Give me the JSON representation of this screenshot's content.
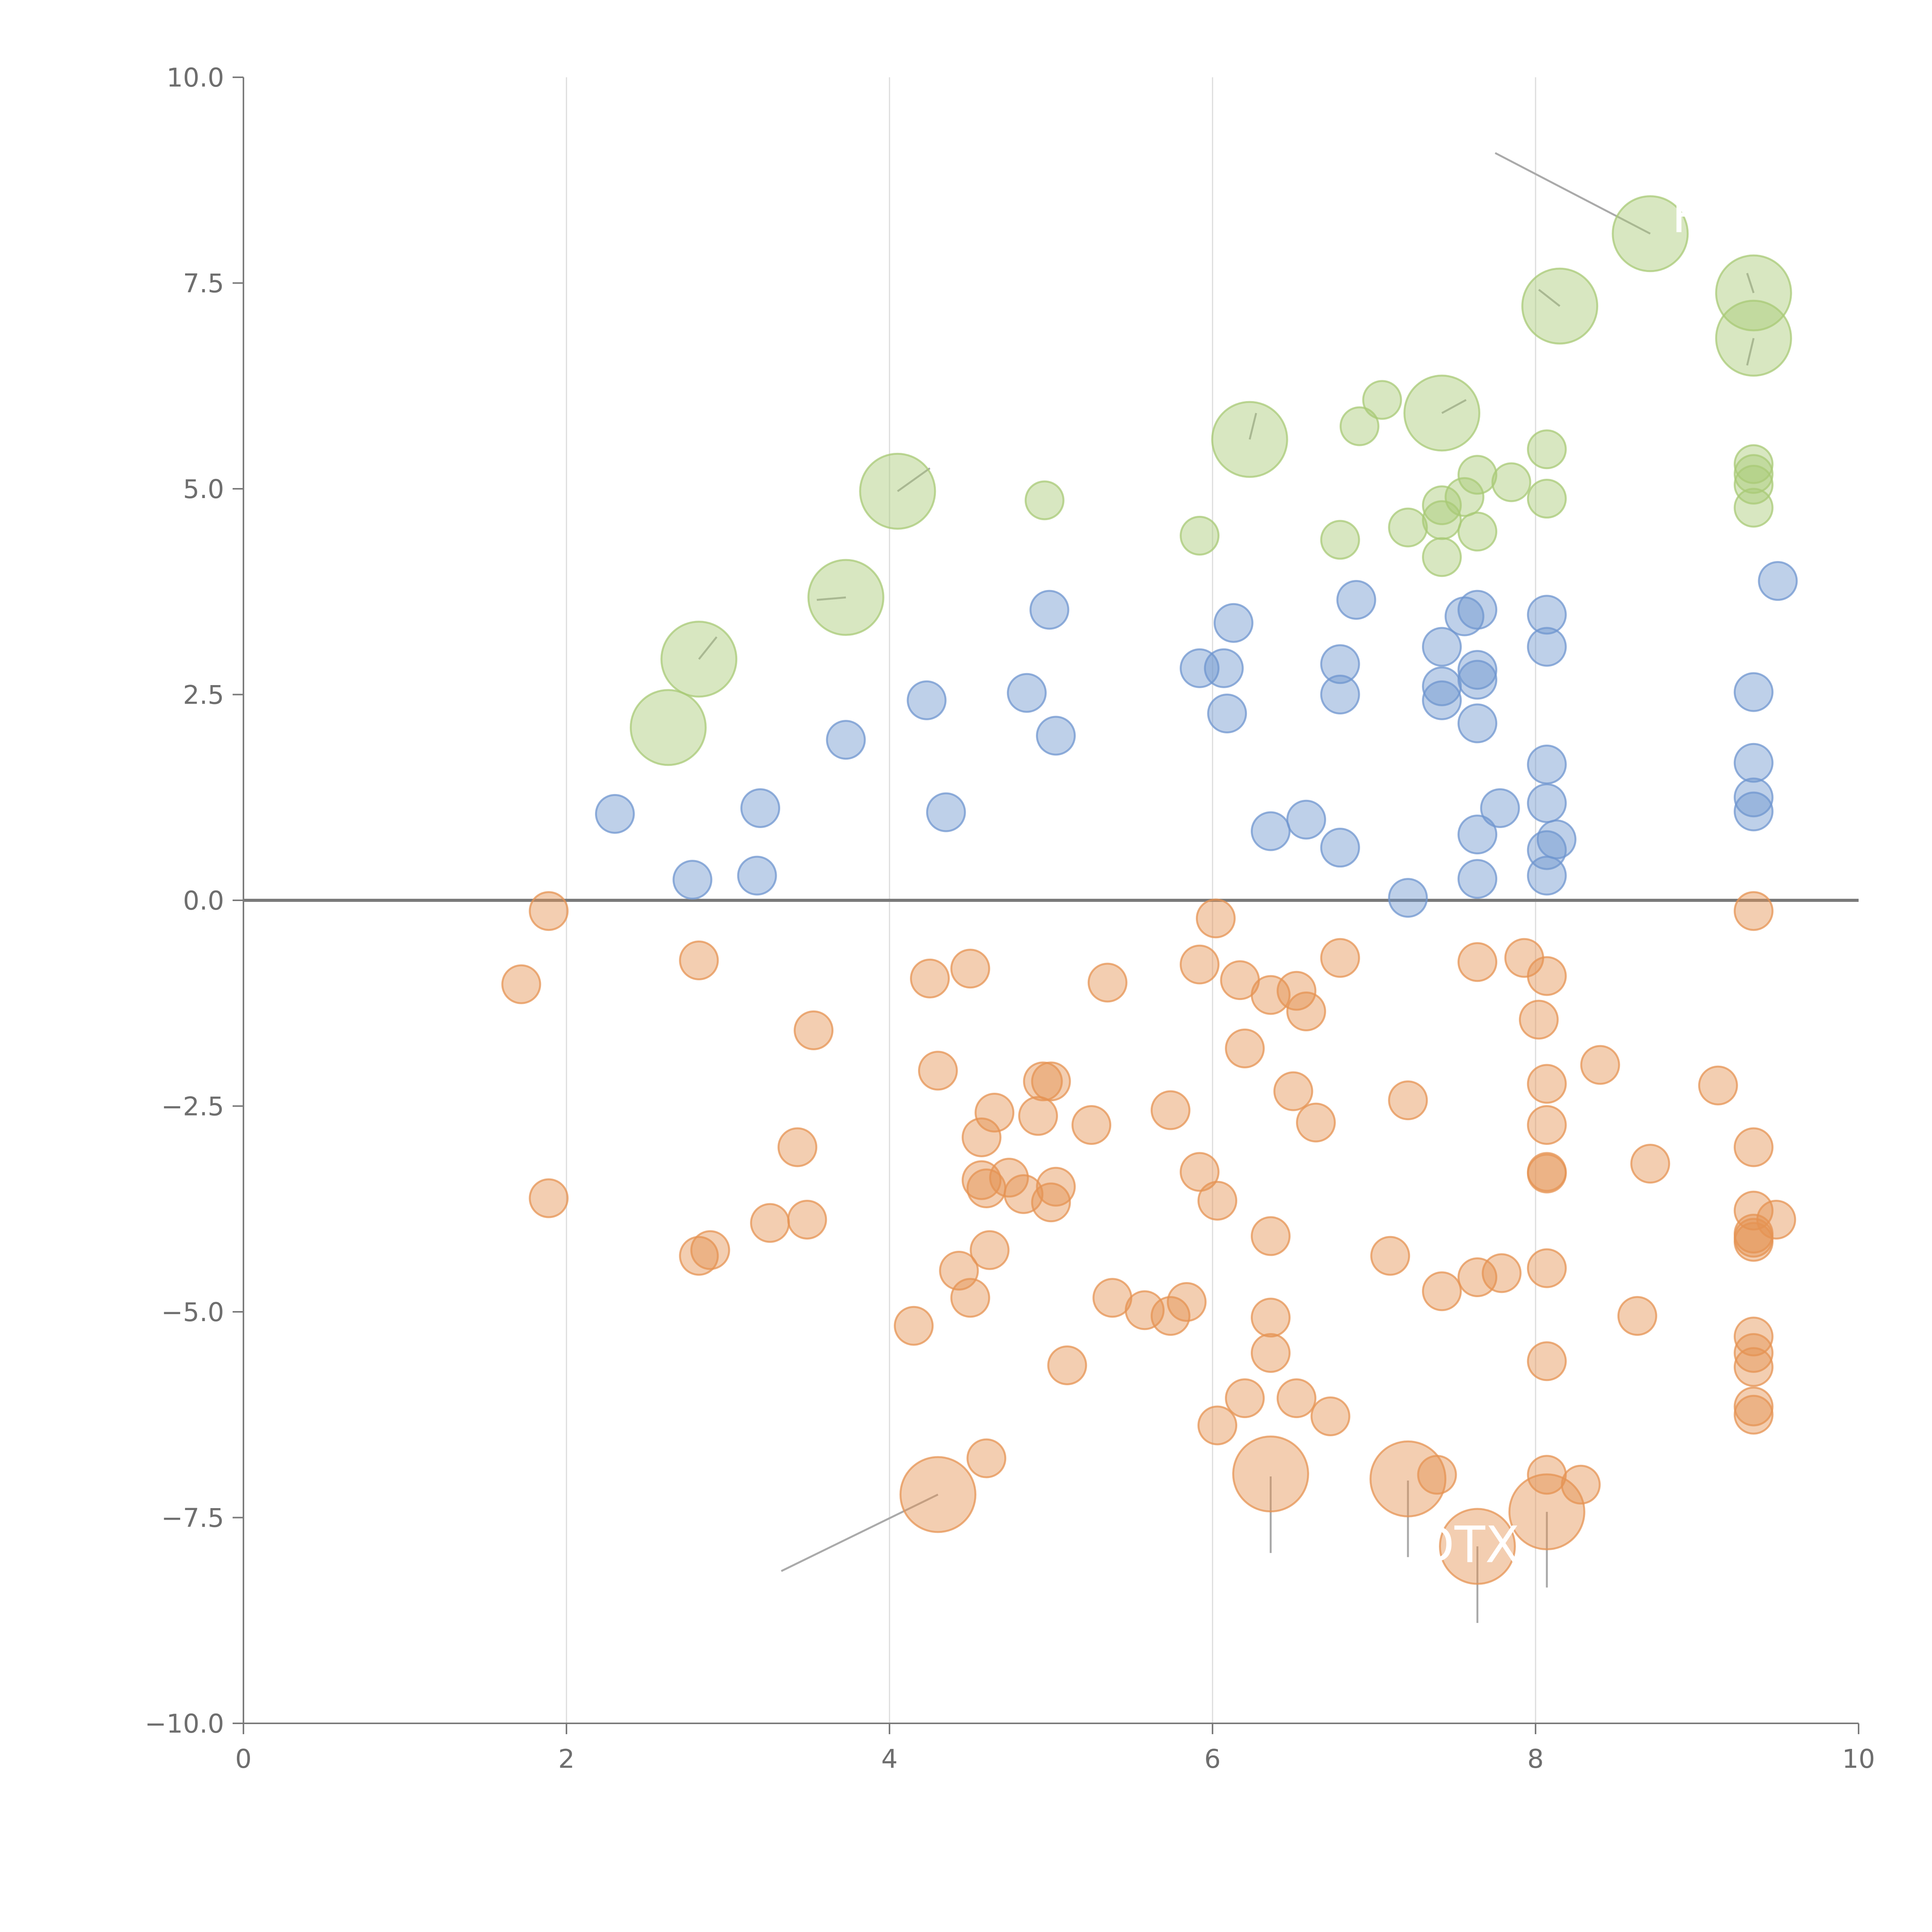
{
  "colors": {
    "positive": "#6f96cf",
    "negative": "#e59353",
    "highlight": "#a8c976",
    "axis": "#7a7a7a",
    "grid": "#dcdcdc",
    "annotation": "#ffffff"
  },
  "chart_data": {
    "type": "scatter",
    "title": "",
    "xlabel": "",
    "ylabel": "",
    "xlim": [
      0,
      10
    ],
    "ylim": [
      -10,
      10
    ],
    "grid": "vertical",
    "x_ticks": [
      {
        "v": 0,
        "label": "0"
      },
      {
        "v": 2,
        "label": "2"
      },
      {
        "v": 4,
        "label": "4"
      },
      {
        "v": 6,
        "label": "6"
      },
      {
        "v": 8,
        "label": "8"
      },
      {
        "v": 10,
        "label": "10"
      }
    ],
    "y_ticks": [
      {
        "v": 10,
        "label": "10.0"
      },
      {
        "v": 7.5,
        "label": "7.5"
      },
      {
        "v": 5,
        "label": "5.0"
      },
      {
        "v": 2.5,
        "label": "2.5"
      },
      {
        "v": 0,
        "label": "0.0"
      },
      {
        "v": -2.5,
        "label": "−2.5"
      },
      {
        "v": -5,
        "label": "−5.0"
      },
      {
        "v": -7.5,
        "label": "−7.5"
      },
      {
        "v": -10,
        "label": "−10.0"
      }
    ],
    "series": [
      {
        "name": "positive",
        "color": "#6f96cf",
        "size": "small",
        "points": [
          [
            2.3,
            1.05
          ],
          [
            2.78,
            0.25
          ],
          [
            3.18,
            0.3
          ],
          [
            3.2,
            1.12
          ],
          [
            3.73,
            1.95
          ],
          [
            4.23,
            2.43
          ],
          [
            4.35,
            1.07
          ],
          [
            4.85,
            2.52
          ],
          [
            4.99,
            3.53
          ],
          [
            5.03,
            2.0
          ],
          [
            5.92,
            2.82
          ],
          [
            6.07,
            2.82
          ],
          [
            6.09,
            2.27
          ],
          [
            6.13,
            3.37
          ],
          [
            6.36,
            0.84
          ],
          [
            6.58,
            0.98
          ],
          [
            6.79,
            0.64
          ],
          [
            6.79,
            2.87
          ],
          [
            6.79,
            2.5
          ],
          [
            6.89,
            3.65
          ],
          [
            7.21,
            0.03
          ],
          [
            7.42,
            3.08
          ],
          [
            7.42,
            2.6
          ],
          [
            7.42,
            2.43
          ],
          [
            7.56,
            3.45
          ],
          [
            7.64,
            3.53
          ],
          [
            7.64,
            2.8
          ],
          [
            7.64,
            2.68
          ],
          [
            7.64,
            2.15
          ],
          [
            7.64,
            0.8
          ],
          [
            7.64,
            0.26
          ],
          [
            7.78,
            1.12
          ],
          [
            8.07,
            3.47
          ],
          [
            8.07,
            3.08
          ],
          [
            8.07,
            1.65
          ],
          [
            8.07,
            1.18
          ],
          [
            8.07,
            0.61
          ],
          [
            8.07,
            0.3
          ],
          [
            8.13,
            0.74
          ],
          [
            9.35,
            2.53
          ],
          [
            9.35,
            1.67
          ],
          [
            9.35,
            1.25
          ],
          [
            9.35,
            1.08
          ],
          [
            9.5,
            3.88
          ]
        ]
      },
      {
        "name": "highlighted",
        "color": "#a8c976",
        "size": "mixed",
        "points": [
          [
            2.63,
            2.1,
            "large"
          ],
          [
            2.82,
            2.93,
            "large"
          ],
          [
            3.73,
            3.68,
            "large"
          ],
          [
            4.05,
            4.97,
            "large"
          ],
          [
            4.96,
            4.86,
            "small"
          ],
          [
            5.92,
            4.43,
            "small"
          ],
          [
            6.23,
            5.6,
            "large"
          ],
          [
            6.79,
            4.38,
            "small"
          ],
          [
            6.91,
            5.76,
            "small"
          ],
          [
            7.05,
            6.08,
            "small"
          ],
          [
            7.21,
            4.53,
            "small"
          ],
          [
            7.42,
            5.92,
            "large"
          ],
          [
            7.42,
            4.8,
            "small"
          ],
          [
            7.42,
            4.62,
            "small"
          ],
          [
            7.42,
            4.17,
            "small"
          ],
          [
            7.56,
            4.9,
            "small"
          ],
          [
            7.64,
            5.17,
            "small"
          ],
          [
            7.64,
            4.48,
            "small"
          ],
          [
            7.85,
            5.08,
            "small"
          ],
          [
            8.07,
            5.48,
            "small"
          ],
          [
            8.07,
            4.88,
            "small"
          ],
          [
            8.15,
            7.22,
            "large"
          ],
          [
            8.71,
            8.1,
            "large"
          ],
          [
            9.35,
            7.38,
            "large"
          ],
          [
            9.35,
            6.83,
            "large"
          ],
          [
            9.35,
            5.3,
            "small"
          ],
          [
            9.35,
            5.18,
            "small"
          ],
          [
            9.35,
            5.05,
            "small"
          ],
          [
            9.35,
            4.77,
            "small"
          ]
        ]
      },
      {
        "name": "negative",
        "color": "#e59353",
        "size": "mixed",
        "points": [
          [
            1.72,
            -1.02,
            "small"
          ],
          [
            1.89,
            -0.13,
            "small"
          ],
          [
            1.89,
            -3.62,
            "small"
          ],
          [
            2.82,
            -0.73,
            "small"
          ],
          [
            2.82,
            -4.32,
            "small"
          ],
          [
            2.89,
            -4.25,
            "small"
          ],
          [
            3.26,
            -3.92,
            "small"
          ],
          [
            3.43,
            -3.0,
            "small"
          ],
          [
            3.49,
            -3.88,
            "small"
          ],
          [
            3.53,
            -1.58,
            "small"
          ],
          [
            4.15,
            -5.17,
            "small"
          ],
          [
            4.25,
            -0.95,
            "small"
          ],
          [
            4.3,
            -2.07,
            "small"
          ],
          [
            4.3,
            -7.22,
            "large"
          ],
          [
            4.43,
            -4.5,
            "small"
          ],
          [
            4.5,
            -0.83,
            "small"
          ],
          [
            4.5,
            -4.83,
            "small"
          ],
          [
            4.57,
            -2.88,
            "small"
          ],
          [
            4.57,
            -3.4,
            "small"
          ],
          [
            4.6,
            -3.5,
            "small"
          ],
          [
            4.6,
            -6.78,
            "small"
          ],
          [
            4.62,
            -4.25,
            "small"
          ],
          [
            4.65,
            -2.58,
            "small"
          ],
          [
            4.74,
            -3.37,
            "small"
          ],
          [
            4.83,
            -3.57,
            "small"
          ],
          [
            4.92,
            -2.62,
            "small"
          ],
          [
            4.95,
            -2.2,
            "small"
          ],
          [
            5.0,
            -2.2,
            "small"
          ],
          [
            5.0,
            -3.67,
            "small"
          ],
          [
            5.03,
            -3.48,
            "small"
          ],
          [
            5.1,
            -5.65,
            "small"
          ],
          [
            5.25,
            -2.73,
            "small"
          ],
          [
            5.35,
            -1.0,
            "small"
          ],
          [
            5.38,
            -4.83,
            "small"
          ],
          [
            5.58,
            -4.98,
            "small"
          ],
          [
            5.74,
            -2.55,
            "small"
          ],
          [
            5.74,
            -5.05,
            "small"
          ],
          [
            5.84,
            -4.88,
            "small"
          ],
          [
            5.92,
            -0.78,
            "small"
          ],
          [
            5.92,
            -3.3,
            "small"
          ],
          [
            6.02,
            -0.22,
            "small"
          ],
          [
            6.03,
            -3.65,
            "small"
          ],
          [
            6.03,
            -6.38,
            "small"
          ],
          [
            6.17,
            -0.97,
            "small"
          ],
          [
            6.2,
            -1.8,
            "small"
          ],
          [
            6.2,
            -6.05,
            "small"
          ],
          [
            6.36,
            -1.15,
            "small"
          ],
          [
            6.36,
            -4.08,
            "small"
          ],
          [
            6.36,
            -5.07,
            "small"
          ],
          [
            6.36,
            -5.5,
            "small"
          ],
          [
            6.36,
            -6.97,
            "large"
          ],
          [
            6.5,
            -2.32,
            "small"
          ],
          [
            6.52,
            -1.1,
            "small"
          ],
          [
            6.52,
            -6.05,
            "small"
          ],
          [
            6.58,
            -1.35,
            "small"
          ],
          [
            6.64,
            -2.7,
            "small"
          ],
          [
            6.73,
            -6.27,
            "small"
          ],
          [
            6.79,
            -0.7,
            "small"
          ],
          [
            7.1,
            -4.32,
            "small"
          ],
          [
            7.21,
            -2.43,
            "small"
          ],
          [
            7.21,
            -7.03,
            "large"
          ],
          [
            7.39,
            -6.98,
            "small"
          ],
          [
            7.42,
            -4.75,
            "small"
          ],
          [
            7.64,
            -0.75,
            "small"
          ],
          [
            7.64,
            -4.58,
            "small"
          ],
          [
            7.64,
            -7.85,
            "large"
          ],
          [
            7.79,
            -4.53,
            "small"
          ],
          [
            7.93,
            -0.7,
            "small"
          ],
          [
            8.02,
            -1.45,
            "small"
          ],
          [
            8.07,
            -0.92,
            "small"
          ],
          [
            8.07,
            -2.23,
            "small"
          ],
          [
            8.07,
            -2.73,
            "small"
          ],
          [
            8.07,
            -3.3,
            "small"
          ],
          [
            8.07,
            -3.32,
            "small"
          ],
          [
            8.07,
            -4.47,
            "small"
          ],
          [
            8.07,
            -5.6,
            "small"
          ],
          [
            8.07,
            -6.98,
            "small"
          ],
          [
            8.07,
            -7.43,
            "large"
          ],
          [
            8.28,
            -7.1,
            "small"
          ],
          [
            8.4,
            -2.0,
            "small"
          ],
          [
            8.63,
            -5.05,
            "small"
          ],
          [
            8.71,
            -3.2,
            "small"
          ],
          [
            9.13,
            -2.25,
            "small"
          ],
          [
            9.35,
            -0.13,
            "small"
          ],
          [
            9.35,
            -3.0,
            "small"
          ],
          [
            9.35,
            -3.77,
            "small"
          ],
          [
            9.35,
            -4.05,
            "small"
          ],
          [
            9.35,
            -4.1,
            "small"
          ],
          [
            9.35,
            -4.15,
            "small"
          ],
          [
            9.35,
            -5.3,
            "small"
          ],
          [
            9.35,
            -5.5,
            "small"
          ],
          [
            9.35,
            -5.67,
            "small"
          ],
          [
            9.35,
            -6.15,
            "small"
          ],
          [
            9.35,
            -6.25,
            "small"
          ],
          [
            9.49,
            -3.88,
            "small"
          ]
        ]
      }
    ],
    "annotations": [
      {
        "text": "R",
        "x": 8.95,
        "y": 8.33
      },
      {
        "text": "DTX",
        "x": 7.58,
        "y": -7.83
      }
    ],
    "leader_lines": [
      {
        "from": [
          8.71,
          8.1
        ],
        "to": [
          7.75,
          9.08
        ]
      },
      {
        "from": [
          8.15,
          7.22
        ],
        "to": [
          8.02,
          7.42
        ]
      },
      {
        "from": [
          9.35,
          7.38
        ],
        "to": [
          9.31,
          7.62
        ]
      },
      {
        "from": [
          9.35,
          6.83
        ],
        "to": [
          9.31,
          6.5
        ]
      },
      {
        "from": [
          7.42,
          5.92
        ],
        "to": [
          7.57,
          6.08
        ]
      },
      {
        "from": [
          6.23,
          5.6
        ],
        "to": [
          6.27,
          5.92
        ]
      },
      {
        "from": [
          4.05,
          4.97
        ],
        "to": [
          4.25,
          5.25
        ]
      },
      {
        "from": [
          3.73,
          3.68
        ],
        "to": [
          3.55,
          3.65
        ]
      },
      {
        "from": [
          2.82,
          2.93
        ],
        "to": [
          2.93,
          3.2
        ]
      },
      {
        "from": [
          4.3,
          -7.22
        ],
        "to": [
          3.33,
          -8.15
        ]
      },
      {
        "from": [
          6.36,
          -7.0
        ],
        "to": [
          6.36,
          -7.93
        ]
      },
      {
        "from": [
          7.21,
          -7.05
        ],
        "to": [
          7.21,
          -7.98
        ]
      },
      {
        "from": [
          7.64,
          -7.85
        ],
        "to": [
          7.64,
          -8.78
        ]
      },
      {
        "from": [
          8.07,
          -7.43
        ],
        "to": [
          8.07,
          -8.35
        ]
      }
    ]
  }
}
